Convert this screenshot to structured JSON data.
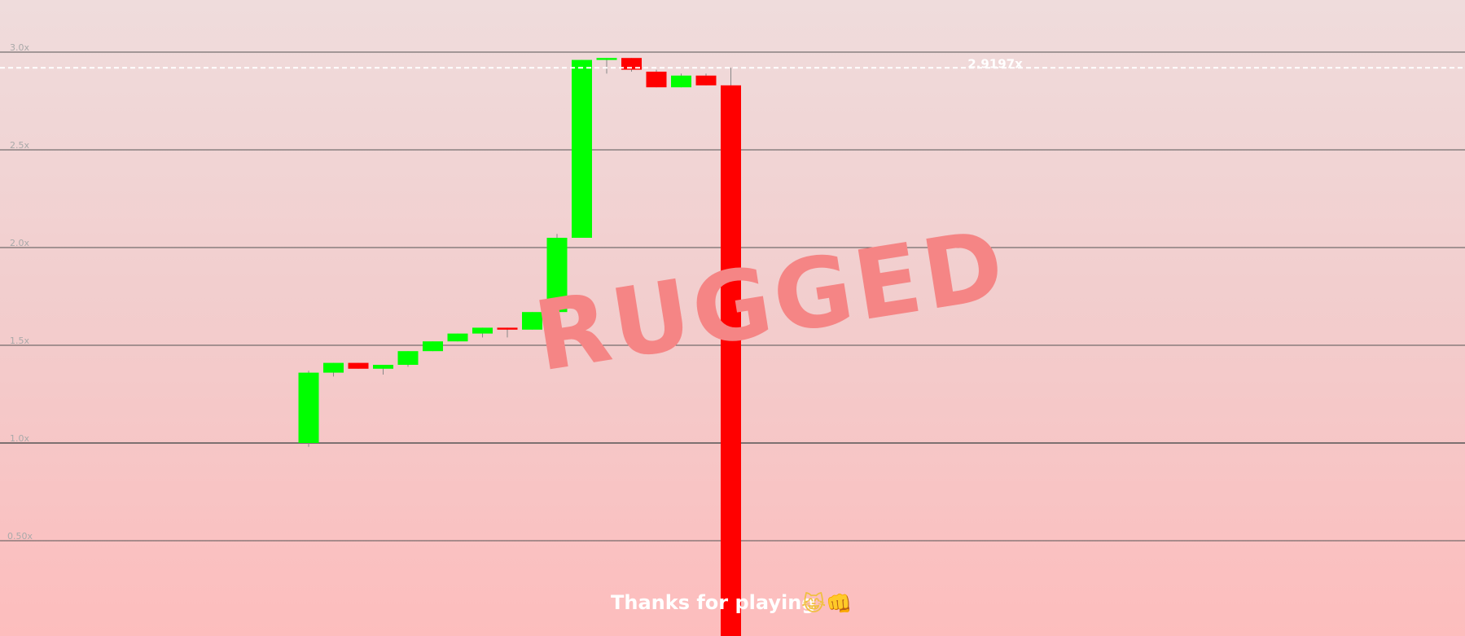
{
  "chart_data": {
    "type": "candlestick",
    "y_ticks": [
      {
        "value": 3.0,
        "label": "3.0x"
      },
      {
        "value": 2.5,
        "label": "2.5x"
      },
      {
        "value": 2.0,
        "label": "2.0x"
      },
      {
        "value": 1.5,
        "label": "1.5x"
      },
      {
        "value": 1.0,
        "label": "1.0x"
      },
      {
        "value": 0.5,
        "label": "0.50x"
      }
    ],
    "candles": [
      {
        "open": 1.0,
        "close": 1.36,
        "high": 1.37,
        "low": 0.98
      },
      {
        "open": 1.36,
        "close": 1.41,
        "high": 1.41,
        "low": 1.34
      },
      {
        "open": 1.41,
        "close": 1.38,
        "high": 1.41,
        "low": 1.38
      },
      {
        "open": 1.38,
        "close": 1.4,
        "high": 1.4,
        "low": 1.35
      },
      {
        "open": 1.4,
        "close": 1.47,
        "high": 1.47,
        "low": 1.39
      },
      {
        "open": 1.47,
        "close": 1.52,
        "high": 1.52,
        "low": 1.47
      },
      {
        "open": 1.52,
        "close": 1.56,
        "high": 1.56,
        "low": 1.52
      },
      {
        "open": 1.56,
        "close": 1.59,
        "high": 1.59,
        "low": 1.54
      },
      {
        "open": 1.59,
        "close": 1.58,
        "high": 1.59,
        "low": 1.54
      },
      {
        "open": 1.58,
        "close": 1.67,
        "high": 1.67,
        "low": 1.58
      },
      {
        "open": 1.67,
        "close": 2.05,
        "high": 2.07,
        "low": 1.67
      },
      {
        "open": 2.05,
        "close": 2.96,
        "high": 2.96,
        "low": 2.05
      },
      {
        "open": 2.96,
        "close": 2.97,
        "high": 2.97,
        "low": 2.89
      },
      {
        "open": 2.97,
        "close": 2.91,
        "high": 2.97,
        "low": 2.9
      },
      {
        "open": 2.9,
        "close": 2.82,
        "high": 2.91,
        "low": 2.82
      },
      {
        "open": 2.82,
        "close": 2.88,
        "high": 2.89,
        "low": 2.82
      },
      {
        "open": 2.88,
        "close": 2.83,
        "high": 2.89,
        "low": 2.83
      },
      {
        "open": 2.83,
        "close": -0.5,
        "high": 2.92,
        "low": -0.5
      }
    ],
    "current_value": 2.9197,
    "current_label": "2.9197x",
    "grid": true,
    "legend": "none",
    "colors": {
      "up": "#00ff00",
      "down": "#ff0000",
      "grid": "#555555",
      "current_line": "#ffffff",
      "stamp": "#f58585"
    }
  },
  "overlay": {
    "stamp_text": "RUGGED",
    "footer_text": "Thanks for playing",
    "footer_emoji": "😹👊"
  }
}
